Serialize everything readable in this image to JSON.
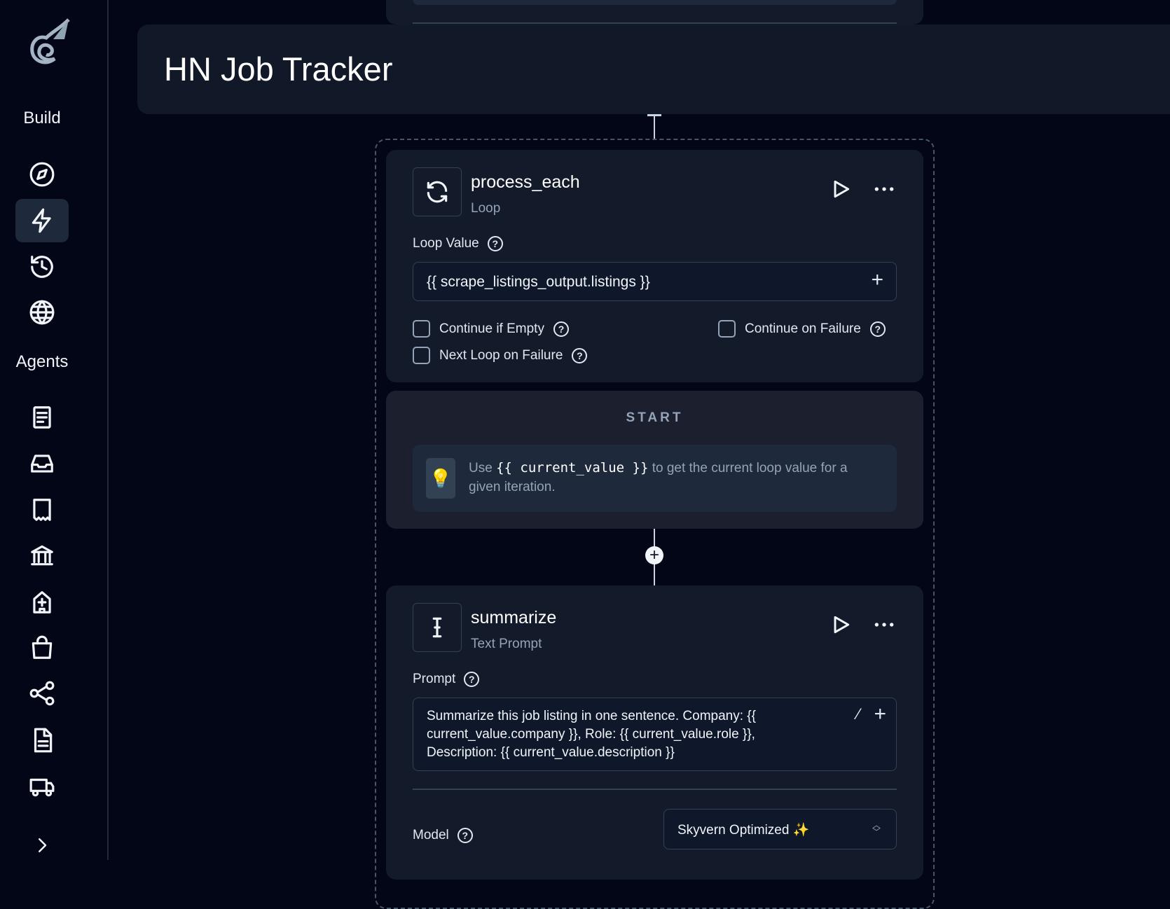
{
  "sidebar": {
    "build_label": "Build",
    "agents_label": "Agents"
  },
  "header": {
    "title": "HN Job Tracker"
  },
  "loop_node": {
    "title": "process_each",
    "type": "Loop",
    "loop_value_label": "Loop Value",
    "loop_value": "{{ scrape_listings_output.listings }}",
    "continue_if_empty": "Continue if Empty",
    "continue_on_failure": "Continue on Failure",
    "next_loop_on_failure": "Next Loop on Failure"
  },
  "start": {
    "label": "START",
    "tip_prefix": "Use",
    "tip_code": "{{ current_value }}",
    "tip_suffix": "to get the current loop value for a given iteration."
  },
  "prompt_node": {
    "title": "summarize",
    "type": "Text Prompt",
    "prompt_label": "Prompt",
    "prompt": "Summarize this job listing in one sentence. Company: {{ current_value.company }}, Role: {{ current_value.role }}, Description: {{ current_value.description }}",
    "model_label": "Model",
    "model_value": "Skyvern Optimized ✨"
  }
}
